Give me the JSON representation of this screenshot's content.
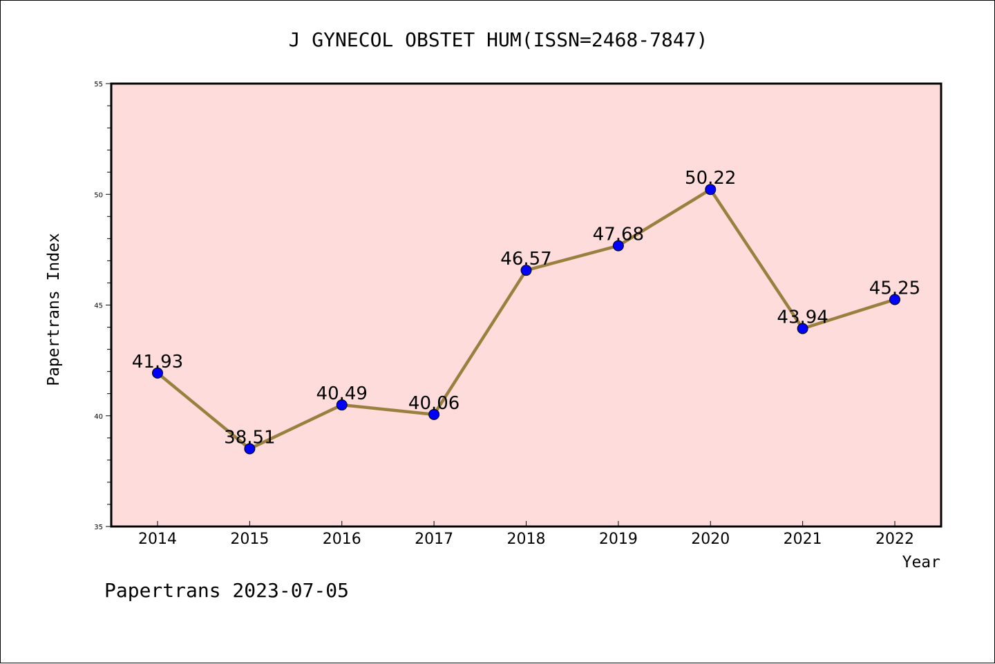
{
  "chart_data": {
    "type": "line",
    "title": "J GYNECOL OBSTET HUM(ISSN=2468-7847)",
    "xlabel": "Year",
    "ylabel": "Papertrans Index",
    "categories": [
      "2014",
      "2015",
      "2016",
      "2017",
      "2018",
      "2019",
      "2020",
      "2021",
      "2022"
    ],
    "values": [
      41.93,
      38.51,
      40.49,
      40.06,
      46.57,
      47.68,
      50.22,
      43.94,
      45.25
    ],
    "data_labels": [
      "41.93",
      "38.51",
      "40.49",
      "40.06",
      "46.57",
      "47.68",
      "50.22",
      "43.94",
      "45.25"
    ],
    "ylim": [
      35,
      55
    ],
    "yticks": [
      "35",
      "40",
      "45",
      "50",
      "55"
    ],
    "grid": false,
    "legend": "none",
    "plot_background": "#fddcdb",
    "line_color": "#9a7f3f",
    "marker_color": "#0000ff"
  },
  "footer": "Papertrans 2023-07-05"
}
